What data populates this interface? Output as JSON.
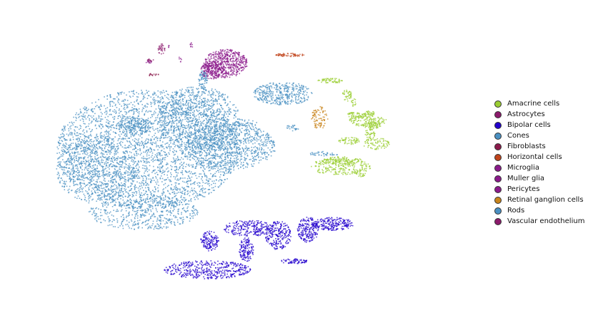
{
  "chart_data": {
    "type": "scatter",
    "title": "",
    "xlabel": "",
    "ylabel": "",
    "axes_visible": false,
    "grid": false,
    "legend_position": "right",
    "xlim": [
      0,
      100
    ],
    "ylim": [
      0,
      100
    ],
    "series": [
      {
        "name": "Amacrine cells",
        "color": "#9acd32",
        "clusters": [
          {
            "cx": 66.0,
            "cy": 79.0,
            "rx": 2.8,
            "ry": 0.9,
            "n": 60
          },
          {
            "cx": 71.0,
            "cy": 71.5,
            "rx": 0.6,
            "ry": 1.5,
            "n": 15
          },
          {
            "cx": 74.0,
            "cy": 65.0,
            "rx": 4.2,
            "ry": 2.0,
            "n": 120
          },
          {
            "cx": 70.0,
            "cy": 58.0,
            "rx": 2.3,
            "ry": 1.3,
            "n": 60
          },
          {
            "cx": 68.0,
            "cy": 49.0,
            "rx": 6.8,
            "ry": 2.8,
            "n": 220
          },
          {
            "cx": 68.5,
            "cy": 51.0,
            "rx": 4.5,
            "ry": 1.5,
            "n": 120
          },
          {
            "cx": 74.5,
            "cy": 60.5,
            "rx": 1.2,
            "ry": 1.8,
            "n": 40
          },
          {
            "cx": 76.0,
            "cy": 57.0,
            "rx": 3.0,
            "ry": 2.0,
            "n": 80
          },
          {
            "cx": 72.0,
            "cy": 67.0,
            "rx": 3.0,
            "ry": 1.0,
            "n": 60
          },
          {
            "cx": 69.5,
            "cy": 74.0,
            "rx": 1.0,
            "ry": 2.2,
            "n": 40
          },
          {
            "cx": 74.5,
            "cy": 67.5,
            "rx": 1.2,
            "ry": 1.0,
            "n": 30
          },
          {
            "cx": 75.0,
            "cy": 63.5,
            "rx": 2.0,
            "ry": 1.2,
            "n": 60
          },
          {
            "cx": 72.5,
            "cy": 47.0,
            "rx": 1.4,
            "ry": 1.5,
            "n": 30
          }
        ]
      },
      {
        "name": "Astrocytes",
        "color": "#8b1a6b",
        "clusters": [
          {
            "cx": 29.0,
            "cy": 90.0,
            "rx": 0.9,
            "ry": 1.8,
            "n": 30
          },
          {
            "cx": 26.5,
            "cy": 86.0,
            "rx": 0.8,
            "ry": 0.5,
            "n": 10
          }
        ]
      },
      {
        "name": "Bipolar cells",
        "color": "#2200cc",
        "clusters": [
          {
            "cx": 39.0,
            "cy": 13.0,
            "rx": 9.5,
            "ry": 3.2,
            "n": 420
          },
          {
            "cx": 39.5,
            "cy": 23.0,
            "rx": 2.0,
            "ry": 3.5,
            "n": 140
          },
          {
            "cx": 48.0,
            "cy": 27.5,
            "rx": 5.5,
            "ry": 2.8,
            "n": 240
          },
          {
            "cx": 47.5,
            "cy": 20.0,
            "rx": 1.6,
            "ry": 4.2,
            "n": 140
          },
          {
            "cx": 54.5,
            "cy": 25.0,
            "rx": 2.8,
            "ry": 5.0,
            "n": 230
          },
          {
            "cx": 61.0,
            "cy": 27.0,
            "rx": 2.3,
            "ry": 4.5,
            "n": 200
          },
          {
            "cx": 66.5,
            "cy": 29.0,
            "rx": 4.5,
            "ry": 2.3,
            "n": 220
          },
          {
            "cx": 58.0,
            "cy": 16.0,
            "rx": 3.0,
            "ry": 0.9,
            "n": 70
          }
        ]
      },
      {
        "name": "Cones",
        "color": "#4a90c2",
        "clusters": [
          {
            "cx": 23.0,
            "cy": 63.0,
            "rx": 4.0,
            "ry": 3.0,
            "n": 200
          }
        ]
      },
      {
        "name": "Fibroblasts",
        "color": "#8b1a4b",
        "clusters": [
          {
            "cx": 27.0,
            "cy": 81.0,
            "rx": 1.5,
            "ry": 0.5,
            "n": 15
          }
        ]
      },
      {
        "name": "Horizontal cells",
        "color": "#c0441c",
        "clusters": [
          {
            "cx": 57.0,
            "cy": 88.0,
            "rx": 3.2,
            "ry": 0.6,
            "n": 60
          }
        ]
      },
      {
        "name": "Microglia",
        "color": "#8b1a8b",
        "clusters": [
          {
            "cx": 35.5,
            "cy": 91.5,
            "rx": 0.3,
            "ry": 1.0,
            "n": 8
          },
          {
            "cx": 33.0,
            "cy": 86.5,
            "rx": 0.3,
            "ry": 1.0,
            "n": 6
          },
          {
            "cx": 30.5,
            "cy": 91.0,
            "rx": 0.3,
            "ry": 0.4,
            "n": 4
          }
        ]
      },
      {
        "name": "Muller glia",
        "color": "#8b1a8b",
        "clusters": [
          {
            "cx": 43.0,
            "cy": 85.0,
            "rx": 4.8,
            "ry": 5.0,
            "n": 500
          },
          {
            "cx": 40.0,
            "cy": 82.5,
            "rx": 2.5,
            "ry": 3.0,
            "n": 200
          }
        ]
      },
      {
        "name": "Pericytes",
        "color": "#8b1a8b",
        "clusters": [
          {
            "cx": 26.2,
            "cy": 85.5,
            "rx": 0.7,
            "ry": 0.4,
            "n": 8
          }
        ]
      },
      {
        "name": "Retinal ganglion cells",
        "color": "#c8841c",
        "clusters": [
          {
            "cx": 63.5,
            "cy": 66.0,
            "rx": 1.8,
            "ry": 4.0,
            "n": 90
          }
        ]
      },
      {
        "name": "Rods",
        "color": "#4a90c2",
        "clusters": [
          {
            "cx": 26.0,
            "cy": 55.0,
            "rx": 20.0,
            "ry": 21.0,
            "n": 3200
          },
          {
            "cx": 37.0,
            "cy": 66.0,
            "rx": 9.0,
            "ry": 11.0,
            "n": 900
          },
          {
            "cx": 44.0,
            "cy": 56.0,
            "rx": 10.0,
            "ry": 8.0,
            "n": 800
          },
          {
            "cx": 15.0,
            "cy": 48.0,
            "rx": 9.0,
            "ry": 12.0,
            "n": 700
          },
          {
            "cx": 25.0,
            "cy": 33.0,
            "rx": 12.0,
            "ry": 6.0,
            "n": 500
          },
          {
            "cx": 55.5,
            "cy": 74.5,
            "rx": 6.5,
            "ry": 4.0,
            "n": 400
          },
          {
            "cx": 38.0,
            "cy": 79.0,
            "rx": 1.0,
            "ry": 3.5,
            "n": 70
          },
          {
            "cx": 47.0,
            "cy": 64.0,
            "rx": 3.0,
            "ry": 1.5,
            "n": 40
          },
          {
            "cx": 64.5,
            "cy": 53.5,
            "rx": 3.5,
            "ry": 0.8,
            "n": 40
          },
          {
            "cx": 57.5,
            "cy": 62.5,
            "rx": 1.5,
            "ry": 1.0,
            "n": 25
          }
        ]
      },
      {
        "name": "Vascular endothelium",
        "color": "#8b1a6b",
        "clusters": [
          {
            "cx": 26.0,
            "cy": 86.3,
            "rx": 0.4,
            "ry": 0.4,
            "n": 5
          }
        ]
      }
    ]
  }
}
